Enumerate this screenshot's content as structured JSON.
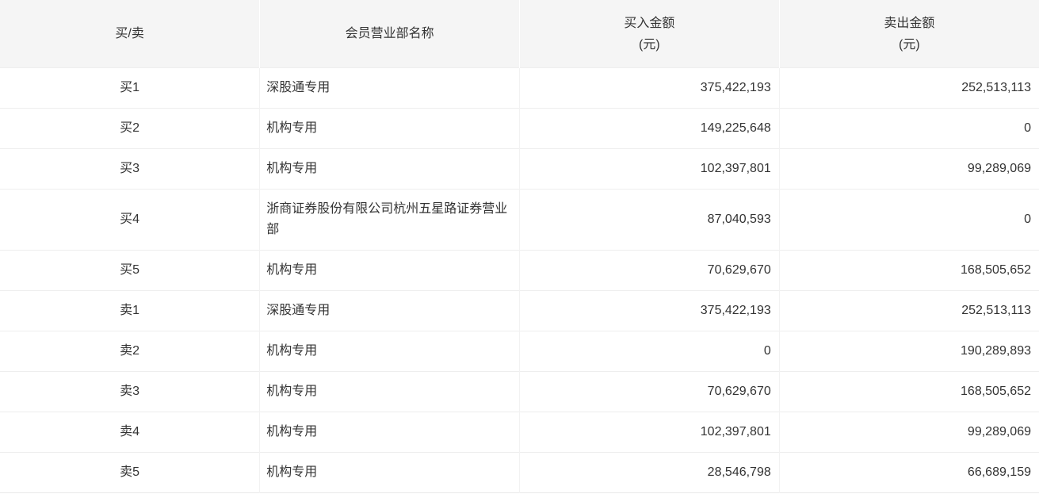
{
  "table": {
    "columns": [
      {
        "key": "side",
        "label": "买/卖"
      },
      {
        "key": "broker",
        "label": "会员营业部名称"
      },
      {
        "key": "buy",
        "label": "买入金额",
        "unit": "(元)"
      },
      {
        "key": "sell",
        "label": "卖出金额",
        "unit": "(元)"
      }
    ],
    "rows": [
      {
        "side": "买1",
        "broker": "深股通专用",
        "buy": "375,422,193",
        "sell": "252,513,113"
      },
      {
        "side": "买2",
        "broker": "机构专用",
        "buy": "149,225,648",
        "sell": "0"
      },
      {
        "side": "买3",
        "broker": "机构专用",
        "buy": "102,397,801",
        "sell": "99,289,069"
      },
      {
        "side": "买4",
        "broker": "浙商证券股份有限公司杭州五星路证券营业部",
        "buy": "87,040,593",
        "sell": "0"
      },
      {
        "side": "买5",
        "broker": "机构专用",
        "buy": "70,629,670",
        "sell": "168,505,652"
      },
      {
        "side": "卖1",
        "broker": "深股通专用",
        "buy": "375,422,193",
        "sell": "252,513,113"
      },
      {
        "side": "卖2",
        "broker": "机构专用",
        "buy": "0",
        "sell": "190,289,893"
      },
      {
        "side": "卖3",
        "broker": "机构专用",
        "buy": "70,629,670",
        "sell": "168,505,652"
      },
      {
        "side": "卖4",
        "broker": "机构专用",
        "buy": "102,397,801",
        "sell": "99,289,069"
      },
      {
        "side": "卖5",
        "broker": "机构专用",
        "buy": "28,546,798",
        "sell": "66,689,159"
      }
    ]
  },
  "colors": {
    "header_bg": "#f5f5f5",
    "row_bg": "#ffffff",
    "text": "#333333",
    "row_divider": "#eeeeee",
    "column_divider": "#f2f2f2",
    "header_divider": "#ffffff"
  }
}
